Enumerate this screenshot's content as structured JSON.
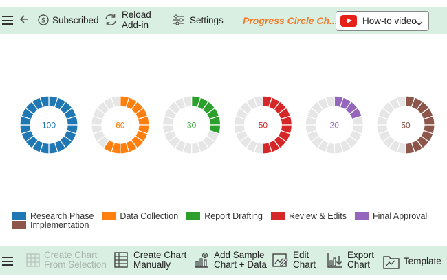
{
  "toolbar": {
    "subscribed_label": "Subscribed",
    "reload_label_line1": "Reload",
    "reload_label_line2": "Add-in",
    "settings_label": "Settings",
    "brand_title": "Progress Circle Ch...",
    "howto_label": "How-to video"
  },
  "bottom_toolbar": {
    "create_from_selection_line1": "Create Chart",
    "create_from_selection_line2": "From Selection",
    "create_manually_line1": "Create Chart",
    "create_manually_line2": "Manually",
    "add_sample_line1": "Add Sample",
    "add_sample_line2": "Chart + Data",
    "edit_line1": "Edit",
    "edit_line2": "Chart",
    "export_line1": "Export",
    "export_line2": "Chart",
    "template_label": "Template"
  },
  "colors": {
    "toolbar_bg": "#d8efe1",
    "brand": "#f07b2a",
    "track": "#e6e6e6"
  },
  "chart_data": {
    "type": "progress-circle",
    "segments_per_ring": 20,
    "max": 100,
    "series": [
      {
        "name": "Research Phase",
        "value": 100,
        "color": "#1f77b4"
      },
      {
        "name": "Data Collection",
        "value": 60,
        "color": "#ff7f0e"
      },
      {
        "name": "Report Drafting",
        "value": 30,
        "color": "#2ca02c"
      },
      {
        "name": "Review & Edits",
        "value": 50,
        "color": "#d62728"
      },
      {
        "name": "Final Approval",
        "value": 20,
        "color": "#9467bd"
      },
      {
        "name": "Implementation",
        "value": 50,
        "color": "#8c564b"
      }
    ],
    "legend_position": "bottom-left"
  }
}
